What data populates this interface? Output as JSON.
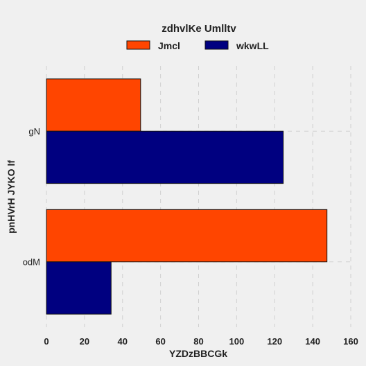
{
  "chart_data": {
    "type": "bar",
    "orientation": "horizontal",
    "categories": [
      "gN",
      "odM"
    ],
    "series": [
      {
        "name": "Jmcl",
        "values": [
          49.5,
          147.5
        ],
        "color": "#ff4500"
      },
      {
        "name": "wkwLL",
        "values": [
          124.5,
          34
        ],
        "color": "#000080"
      }
    ],
    "legend_title": "zdhvlKe Umlltv",
    "legend_position": "top-center",
    "xlabel": "YZDzBBCGk",
    "ylabel": "pnHVrH JYKO lf",
    "xlim": [
      0,
      160
    ],
    "xticks": [
      0,
      20,
      40,
      60,
      80,
      100,
      120,
      140,
      160
    ],
    "grid": true
  }
}
